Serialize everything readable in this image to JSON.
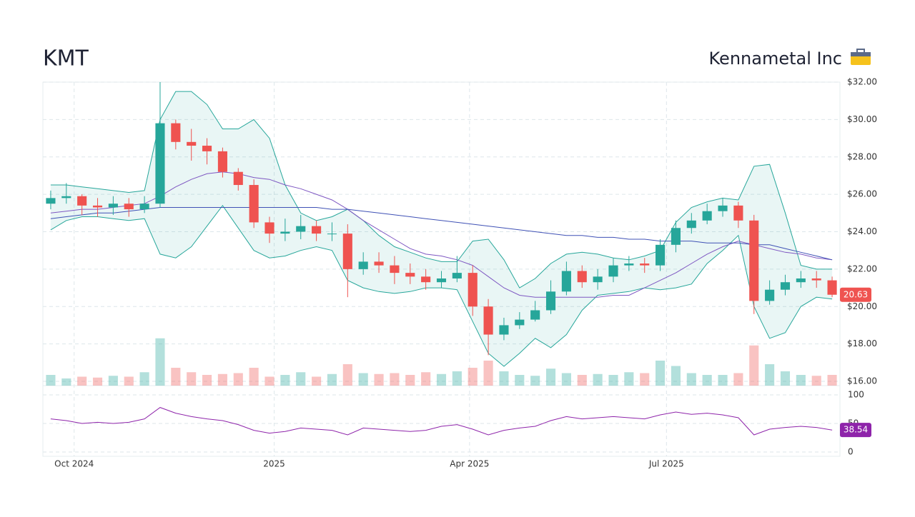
{
  "chart_data": {
    "type": "candlestick",
    "title": "KMT",
    "subtitle": "Kennametal Inc",
    "xlim": [
      -0.5,
      50.5
    ],
    "xticks": [
      {
        "value": 1.5,
        "label": "Oct 2024"
      },
      {
        "value": 14.3,
        "label": "2025"
      },
      {
        "value": 26.8,
        "label": "Apr 2025"
      },
      {
        "value": 39.4,
        "label": "Jul 2025"
      }
    ],
    "ylim": [
      16,
      32
    ],
    "yticks": [
      {
        "value": 16,
        "label": "$16.00"
      },
      {
        "value": 18,
        "label": "$18.00"
      },
      {
        "value": 20,
        "label": "$20.00"
      },
      {
        "value": 22,
        "label": "$22.00"
      },
      {
        "value": 24,
        "label": "$24.00"
      },
      {
        "value": 26,
        "label": "$26.00"
      },
      {
        "value": 28,
        "label": "$28.00"
      },
      {
        "value": 30,
        "label": "$30.00"
      },
      {
        "value": 32,
        "label": "$32.00"
      }
    ],
    "open": [
      25.5,
      25.8,
      25.9,
      25.4,
      25.3,
      25.5,
      25.2,
      25.5,
      29.8,
      28.8,
      28.6,
      28.3,
      27.2,
      26.5,
      24.5,
      23.9,
      24.0,
      24.3,
      23.9,
      23.9,
      22.0,
      22.4,
      22.2,
      21.8,
      21.6,
      21.3,
      21.5,
      21.8,
      20.0,
      18.5,
      19.0,
      19.3,
      19.8,
      20.8,
      21.9,
      21.3,
      21.6,
      22.2,
      22.3,
      22.2,
      23.3,
      24.2,
      24.6,
      25.1,
      25.4,
      24.6,
      20.3,
      20.9,
      21.3,
      21.5,
      21.4
    ],
    "high": [
      26.2,
      26.6,
      26.0,
      25.8,
      25.9,
      25.8,
      25.9,
      32.0,
      30.0,
      29.5,
      29.0,
      28.5,
      27.4,
      26.8,
      24.8,
      24.7,
      24.9,
      24.6,
      24.5,
      24.4,
      22.9,
      22.9,
      22.7,
      22.3,
      22.0,
      21.9,
      22.7,
      22.2,
      20.4,
      19.4,
      19.7,
      20.3,
      21.4,
      22.4,
      22.2,
      22.0,
      22.6,
      22.7,
      22.6,
      23.6,
      24.6,
      25.0,
      25.5,
      25.8,
      25.6,
      24.9,
      21.4,
      21.7,
      21.9,
      21.9,
      21.6
    ],
    "low": [
      25.2,
      25.5,
      24.9,
      24.8,
      24.9,
      24.8,
      25.0,
      25.3,
      28.4,
      27.8,
      27.6,
      26.9,
      26.2,
      24.2,
      23.4,
      23.5,
      23.6,
      23.5,
      23.5,
      20.5,
      21.7,
      21.8,
      21.2,
      21.2,
      20.9,
      21.0,
      21.3,
      19.5,
      17.4,
      18.2,
      18.8,
      19.2,
      19.6,
      20.6,
      21.0,
      20.9,
      21.3,
      21.9,
      21.8,
      21.9,
      22.9,
      23.9,
      24.4,
      24.8,
      24.2,
      19.6,
      20.1,
      20.6,
      21.0,
      21.0,
      20.5
    ],
    "close": [
      25.8,
      25.9,
      25.4,
      25.3,
      25.5,
      25.2,
      25.5,
      29.8,
      28.8,
      28.6,
      28.3,
      27.2,
      26.5,
      24.5,
      23.9,
      24.0,
      24.3,
      23.9,
      23.9,
      22.0,
      22.4,
      22.2,
      21.8,
      21.6,
      21.3,
      21.5,
      21.8,
      20.0,
      18.5,
      19.0,
      19.3,
      19.8,
      20.8,
      21.9,
      21.3,
      21.6,
      22.2,
      22.3,
      22.2,
      23.3,
      24.2,
      24.6,
      25.1,
      25.4,
      24.6,
      20.3,
      20.9,
      21.3,
      21.5,
      21.4,
      20.63
    ],
    "bb_upper": [
      26.5,
      26.5,
      26.4,
      26.3,
      26.2,
      26.1,
      26.2,
      30.0,
      31.5,
      31.5,
      30.8,
      29.5,
      29.5,
      30.0,
      29.0,
      26.5,
      25.0,
      24.6,
      24.8,
      25.2,
      24.6,
      23.8,
      23.2,
      22.9,
      22.6,
      22.4,
      22.4,
      23.5,
      23.6,
      22.5,
      21.0,
      21.5,
      22.3,
      22.8,
      22.9,
      22.8,
      22.6,
      22.5,
      22.7,
      23.0,
      24.5,
      25.3,
      25.6,
      25.8,
      25.7,
      27.5,
      27.6,
      25.0,
      22.2,
      22.0,
      22.0
    ],
    "bb_lower": [
      24.1,
      24.6,
      24.8,
      24.8,
      24.7,
      24.6,
      24.7,
      22.8,
      22.6,
      23.2,
      24.3,
      25.4,
      24.2,
      23.0,
      22.6,
      22.7,
      23.0,
      23.2,
      23.0,
      21.4,
      21.0,
      20.8,
      20.7,
      20.8,
      21.0,
      21.0,
      20.9,
      19.2,
      17.5,
      16.8,
      17.5,
      18.3,
      17.8,
      18.5,
      19.8,
      20.6,
      20.7,
      20.8,
      21.0,
      20.9,
      21.0,
      21.2,
      22.3,
      23.0,
      23.8,
      20.0,
      18.3,
      18.6,
      20.0,
      20.5,
      20.4
    ],
    "sma50": [
      25.0,
      25.1,
      25.2,
      25.2,
      25.3,
      25.4,
      25.5,
      25.9,
      26.4,
      26.8,
      27.1,
      27.2,
      27.1,
      26.9,
      26.8,
      26.5,
      26.3,
      26.0,
      25.7,
      25.2,
      24.6,
      24.1,
      23.6,
      23.1,
      22.8,
      22.7,
      22.5,
      22.2,
      21.6,
      21.0,
      20.6,
      20.5,
      20.5,
      20.5,
      20.5,
      20.5,
      20.6,
      20.6,
      21.0,
      21.4,
      21.8,
      22.3,
      22.8,
      23.2,
      23.5,
      23.3,
      23.1,
      22.9,
      22.8,
      22.6,
      22.5
    ],
    "sma200": [
      24.7,
      24.8,
      24.9,
      25.0,
      25.0,
      25.1,
      25.2,
      25.3,
      25.3,
      25.3,
      25.3,
      25.3,
      25.3,
      25.3,
      25.3,
      25.3,
      25.3,
      25.3,
      25.2,
      25.2,
      25.1,
      25.0,
      24.9,
      24.8,
      24.7,
      24.6,
      24.5,
      24.4,
      24.3,
      24.2,
      24.1,
      24.0,
      23.9,
      23.8,
      23.8,
      23.7,
      23.7,
      23.6,
      23.6,
      23.5,
      23.5,
      23.5,
      23.4,
      23.4,
      23.4,
      23.3,
      23.3,
      23.1,
      22.9,
      22.7,
      22.5
    ],
    "volume": [
      1.2,
      0.8,
      1.0,
      0.9,
      1.1,
      1.0,
      1.5,
      5.3,
      2.0,
      1.5,
      1.2,
      1.3,
      1.4,
      2.0,
      1.0,
      1.2,
      1.5,
      1.0,
      1.3,
      2.4,
      1.4,
      1.3,
      1.4,
      1.2,
      1.5,
      1.3,
      1.6,
      2.0,
      2.8,
      1.6,
      1.2,
      1.1,
      1.9,
      1.4,
      1.2,
      1.3,
      1.2,
      1.5,
      1.4,
      2.8,
      2.2,
      1.4,
      1.2,
      1.2,
      1.4,
      4.5,
      2.4,
      1.6,
      1.2,
      1.1,
      1.2
    ],
    "volume_ylim": [
      0,
      8
    ],
    "rsi": [
      58,
      55,
      50,
      52,
      50,
      52,
      58,
      78,
      68,
      62,
      58,
      55,
      48,
      38,
      33,
      36,
      42,
      40,
      38,
      30,
      42,
      40,
      38,
      36,
      38,
      45,
      48,
      40,
      30,
      38,
      42,
      45,
      55,
      62,
      58,
      60,
      62,
      60,
      58,
      65,
      70,
      66,
      68,
      65,
      60,
      30,
      40,
      43,
      45,
      43,
      38.54
    ],
    "rsi_ylim": [
      0,
      100
    ],
    "rsi_yticks": [
      0,
      50,
      100
    ],
    "up_color": "#26a69a",
    "down_color": "#ef5350",
    "band_color": "#26a69a",
    "sma50_color": "#7e57c2",
    "sma200_color": "#3f51b5",
    "rsi_color": "#8e24aa",
    "grid": true
  }
}
